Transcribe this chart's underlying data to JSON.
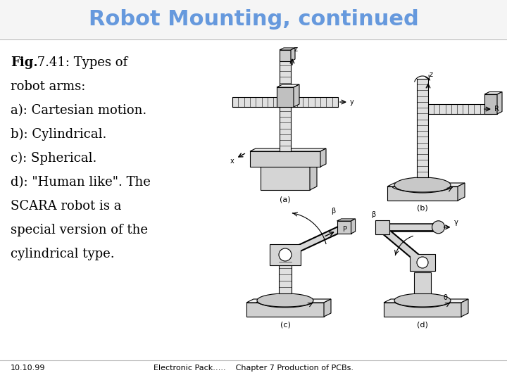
{
  "title": "Robot Mounting, continued",
  "title_color": "#6699DD",
  "title_fontsize": 22,
  "title_fontweight": "bold",
  "background_color": "#ffffff",
  "body_fontsize": 13,
  "footer_left": "10.10.99",
  "footer_center": "Electronic Pack…..    Chapter 7 Production of PCBs.",
  "footer_fontsize": 8
}
